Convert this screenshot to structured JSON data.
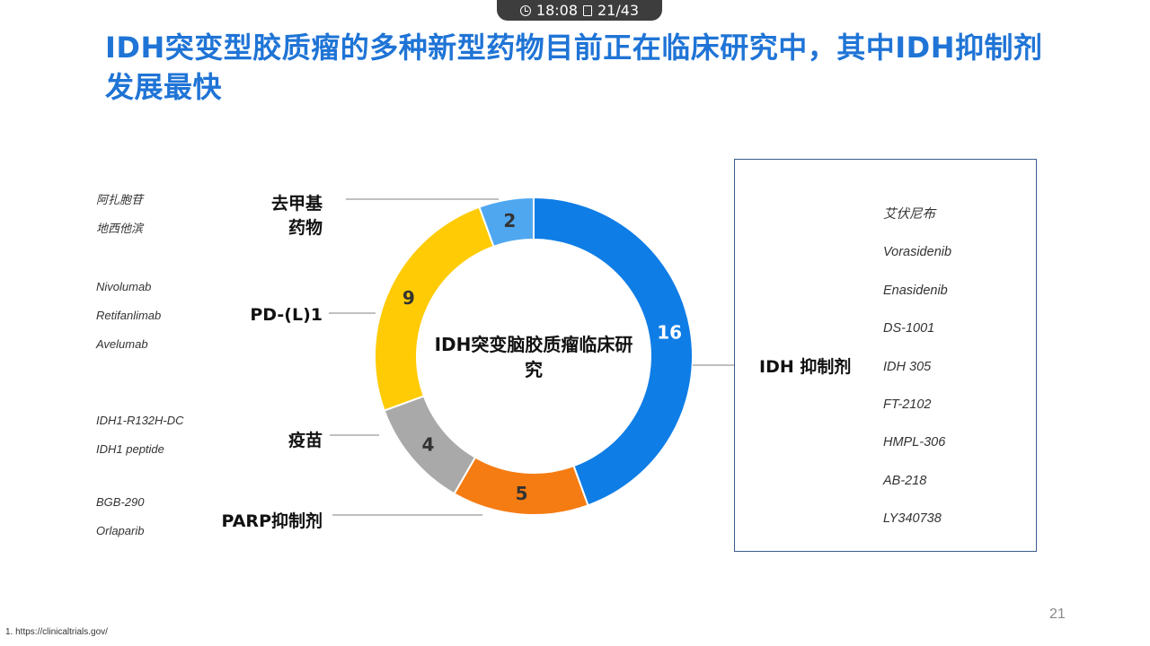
{
  "status_bar": {
    "time": "18:08",
    "page": "21/43"
  },
  "title": "IDH突变型胶质瘤的多种新型药物目前正在临床研究中，其中IDH抑制剂发展最快",
  "chart_data": {
    "type": "pie",
    "style": "donut",
    "center_label": "IDH突变脑胶质瘤临床研究",
    "categories": [
      "IDH 抑制剂",
      "PARP抑制剂",
      "疫苗",
      "PD-(L)1",
      "去甲基药物"
    ],
    "values": [
      16,
      5,
      4,
      9,
      2
    ],
    "colors": [
      "#0f7de6",
      "#f57c12",
      "#a9a9a9",
      "#ffcb05",
      "#4fa7f0"
    ]
  },
  "groups": {
    "demethyl": {
      "label_line1": "去甲基",
      "label_line2": "药物",
      "drugs": [
        "阿扎胞苷",
        "地西他滨"
      ]
    },
    "pdl1": {
      "label": "PD-(L)1",
      "drugs": [
        "Nivolumab",
        "Retifanlimab",
        "Avelumab"
      ]
    },
    "vaccine": {
      "label": "疫苗",
      "drugs": [
        "IDH1-R132H-DC",
        "IDH1 peptide"
      ]
    },
    "parp": {
      "label": "PARP抑制剂",
      "drugs": [
        "BGB-290",
        "Orlaparib"
      ]
    },
    "idh": {
      "label": "IDH 抑制剂",
      "drugs": [
        "艾伏尼布",
        "Vorasidenib",
        "Enasidenib",
        "DS-1001",
        "IDH 305",
        "FT-2102",
        "HMPL-306",
        "AB-218",
        "LY340738"
      ]
    }
  },
  "footnote": "1. https://clinicaltrials.gov/",
  "page_number": "21"
}
